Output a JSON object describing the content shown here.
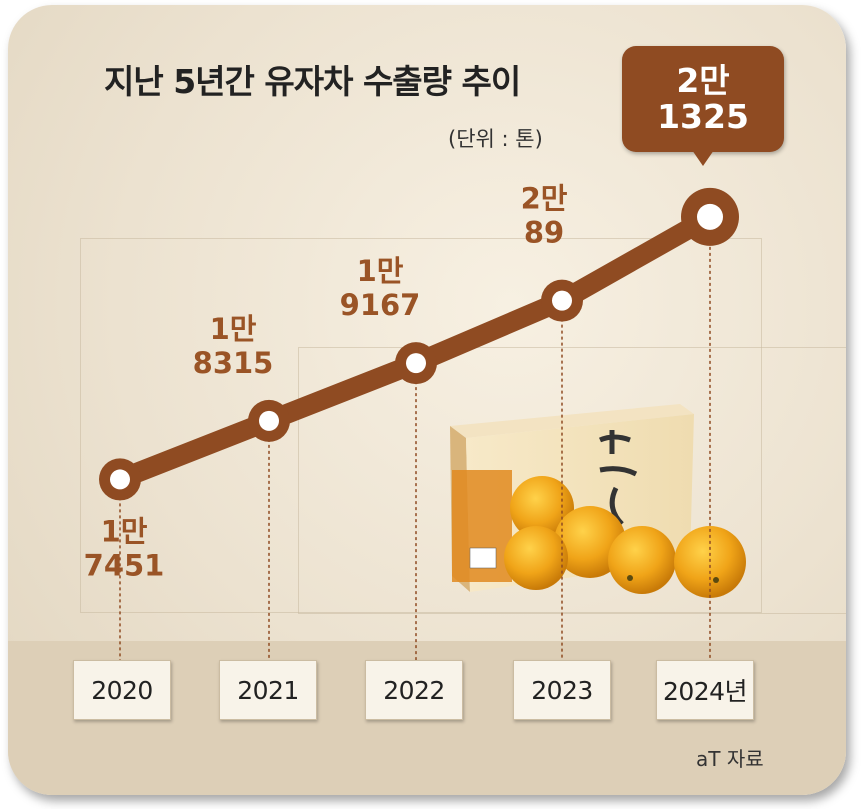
{
  "title": "지난 5년간 유자차 수출량 추이",
  "unit": "(단위 : 톤)",
  "source": "aT 자료",
  "colors": {
    "accent": "#8f4b22",
    "label": "#9a5426",
    "marker_fill": "#ffffff"
  },
  "chart_data": {
    "type": "line",
    "title": "지난 5년간 유자차 수출량 추이",
    "ylabel": "(단위 : 톤)",
    "categories": [
      "2020",
      "2021",
      "2022",
      "2023",
      "2024년"
    ],
    "values": [
      17451,
      18315,
      19167,
      20089,
      21325
    ],
    "value_labels": [
      [
        "1만",
        "7451"
      ],
      [
        "1만",
        "8315"
      ],
      [
        "1만",
        "9167"
      ],
      [
        "2만",
        "89"
      ],
      [
        "2만",
        "1325"
      ]
    ],
    "grid": false,
    "legend": "none"
  }
}
